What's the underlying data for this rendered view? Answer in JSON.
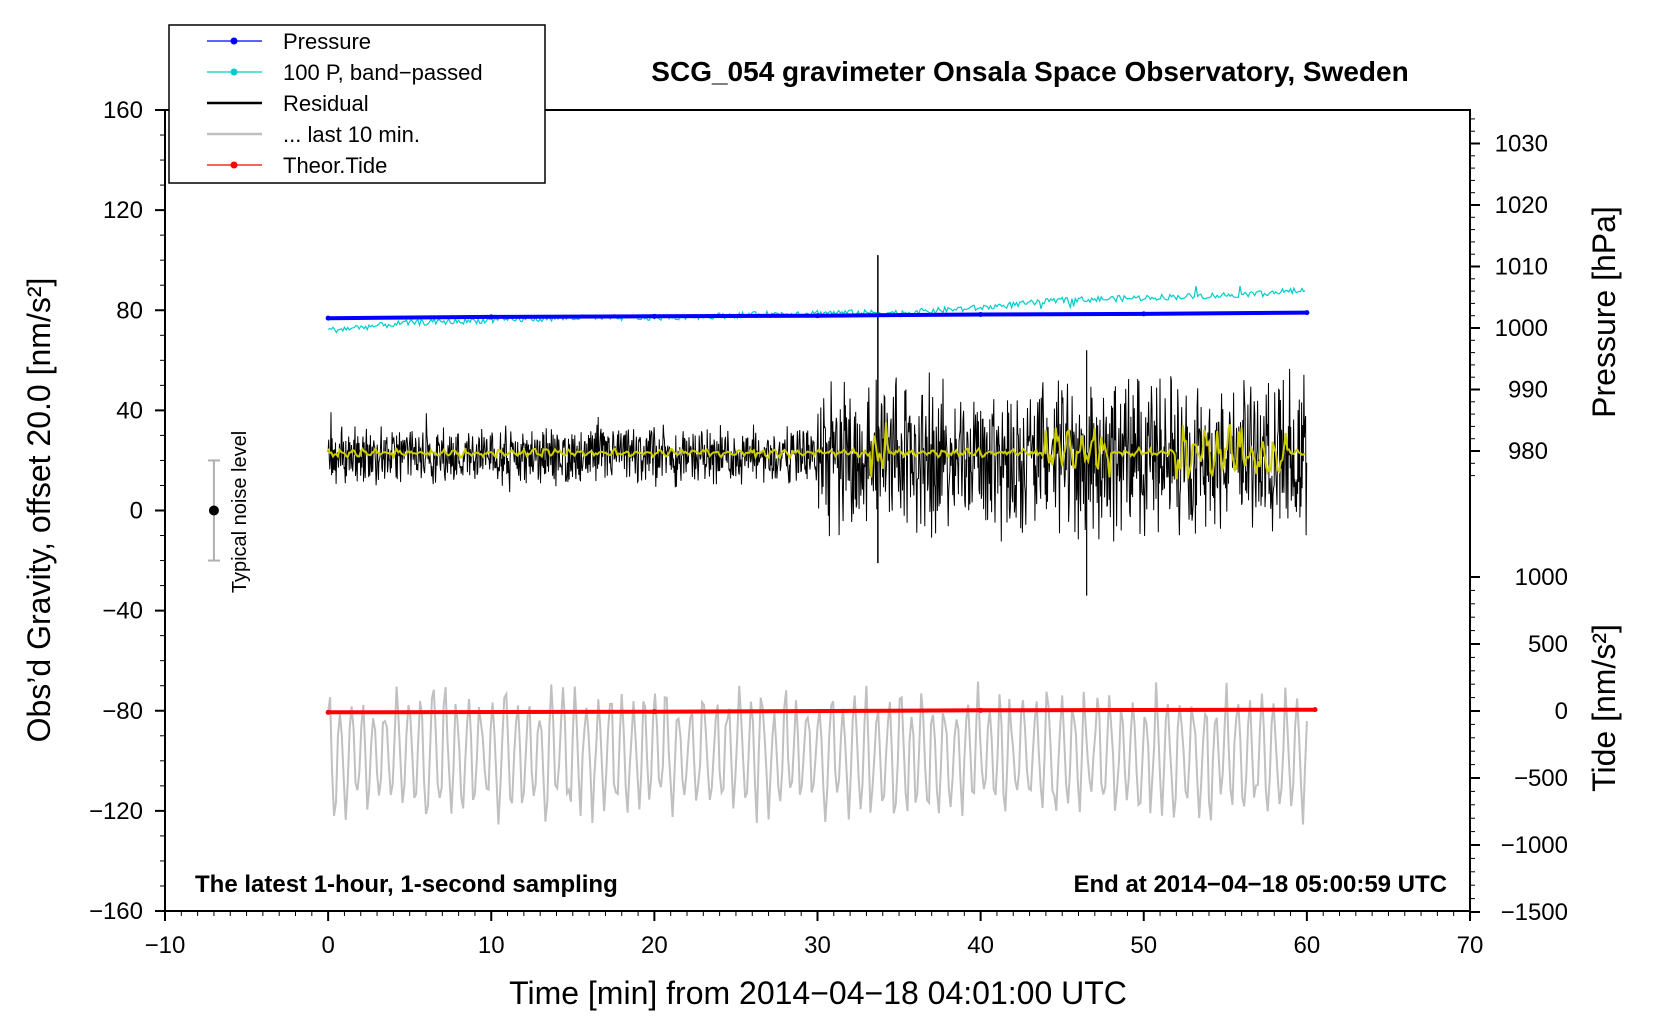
{
  "chart_data": {
    "type": "line",
    "title": "SCG_054 gravimeter Onsala Space Observatory, Sweden",
    "xlabel": "Time [min] from 2014−04−18 04:01:00 UTC",
    "ylabel_left": "Obs’d Gravity, offset 20.0 [nm/s²]",
    "ylabel_pressure": "Pressure [hPa]",
    "ylabel_tide": "Tide [nm/s²]",
    "xlim": [
      -10,
      70
    ],
    "ylim": [
      -160,
      160
    ],
    "pressure_lim": [
      975,
      1035
    ],
    "tide_lim": [
      -1500,
      1000
    ],
    "x_ticks": [
      -10,
      0,
      10,
      20,
      30,
      40,
      50,
      60,
      70
    ],
    "x_tick_labels": [
      "−10",
      "0",
      "10",
      "20",
      "30",
      "40",
      "50",
      "60",
      "70"
    ],
    "y_ticks": [
      -160,
      -120,
      -80,
      -40,
      0,
      40,
      80,
      120,
      160
    ],
    "y_tick_labels": [
      "−160",
      "−120",
      "−80",
      "−40",
      "0",
      "40",
      "80",
      "120",
      "160"
    ],
    "pressure_ticks": [
      980,
      990,
      1000,
      1010,
      1020,
      1030
    ],
    "pressure_tick_labels": [
      "980",
      "990",
      "1000",
      "1010",
      "1020",
      "1030"
    ],
    "tide_ticks": [
      -1500,
      -1000,
      -500,
      0,
      500,
      1000
    ],
    "tide_tick_labels": [
      "−1500",
      "−1000",
      "−500",
      "0",
      "500",
      "1000"
    ],
    "notes": {
      "left": "The latest 1-hour, 1-second sampling",
      "right": "End at 2014−04−18 05:00:59 UTC"
    },
    "noise_label": "Typical noise level",
    "noise_bar": {
      "x": -7,
      "center": 0,
      "half_range": 20
    },
    "legend": [
      {
        "label": "Pressure",
        "color": "#0000ff",
        "marker": true
      },
      {
        "label": "100 P, band−passed",
        "color": "#00cccc",
        "marker": true
      },
      {
        "label": "Residual",
        "color": "#000000",
        "marker": false
      },
      {
        "label": "... last 10 min.",
        "color": "#c0c0c0",
        "marker": false
      },
      {
        "label": "Theor.Tide",
        "color": "#ff0000",
        "marker": true
      }
    ],
    "series": [
      {
        "name": "Pressure",
        "axis": "pressure",
        "color": "#0000ff",
        "x": [
          0,
          10,
          20,
          30,
          40,
          50,
          60
        ],
        "y": [
          1001.6,
          1001.8,
          1001.9,
          1002.0,
          1002.2,
          1002.3,
          1002.5
        ]
      },
      {
        "name": "100 P, band−passed",
        "axis": "gravity",
        "color": "#00cccc",
        "x": [
          0,
          5,
          10,
          15,
          20,
          25,
          30,
          35,
          40,
          45,
          50,
          55,
          60
        ],
        "y": [
          72,
          75,
          76,
          77,
          77,
          78,
          79,
          79,
          81,
          84,
          85,
          86,
          88
        ]
      },
      {
        "name": "Residual",
        "axis": "gravity",
        "color": "#000000",
        "center": 22,
        "quiet_amplitude": 12,
        "spike_x": 33.7,
        "spike_max": 102,
        "spike_min": -21,
        "active_range": [
          30,
          60
        ],
        "active_amplitude": 30,
        "min_value": -34
      },
      {
        "name": "Residual smoothed",
        "axis": "gravity",
        "color": "#cccc00",
        "center": 23,
        "amplitude": 8
      },
      {
        "name": "... last 10 min.",
        "axis": "gravity",
        "color": "#c0c0c0",
        "center": -97,
        "amplitude": 28,
        "min_value": -136,
        "max_value": -67
      },
      {
        "name": "Theor.Tide",
        "axis": "tide",
        "color": "#ff0000",
        "x": [
          0,
          20,
          40,
          60.5
        ],
        "y": [
          -10,
          -5,
          5,
          10
        ]
      }
    ]
  }
}
